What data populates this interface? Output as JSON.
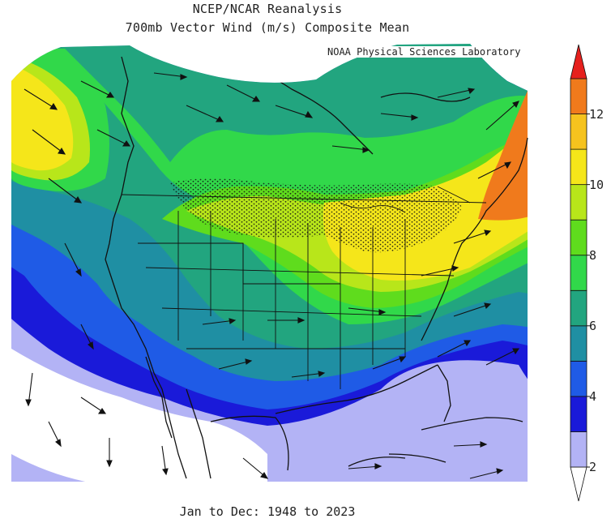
{
  "header": {
    "title": "NCEP/NCAR Reanalysis",
    "subtitle": "700mb Vector Wind (m/s) Composite Mean",
    "credit": "NOAA Physical Sciences Laboratory"
  },
  "footer": {
    "date_range": "Jan to Dec: 1948 to 2023"
  },
  "colorbar": {
    "unit": "m/s",
    "labels": [
      "2",
      "4",
      "6",
      "8",
      "10",
      "12"
    ],
    "levels": [
      {
        "min": 0,
        "max": 2,
        "color": "#ffffff"
      },
      {
        "min": 2,
        "max": 3,
        "color": "#b3b3f5"
      },
      {
        "min": 3,
        "max": 4,
        "color": "#1a1ad9"
      },
      {
        "min": 4,
        "max": 5,
        "color": "#1f5be6"
      },
      {
        "min": 5,
        "max": 6,
        "color": "#1f8fa3"
      },
      {
        "min": 6,
        "max": 7,
        "color": "#22a57f"
      },
      {
        "min": 7,
        "max": 8,
        "color": "#31d84a"
      },
      {
        "min": 8,
        "max": 9,
        "color": "#5fdc1d"
      },
      {
        "min": 9,
        "max": 10,
        "color": "#b8e61a"
      },
      {
        "min": 10,
        "max": 11,
        "color": "#f5e61a"
      },
      {
        "min": 11,
        "max": 12,
        "color": "#f6c31e"
      },
      {
        "min": 12,
        "max": 13,
        "color": "#f07a1c"
      },
      {
        "min": 13,
        "max": 14,
        "color": "#e6201d"
      }
    ]
  }
}
